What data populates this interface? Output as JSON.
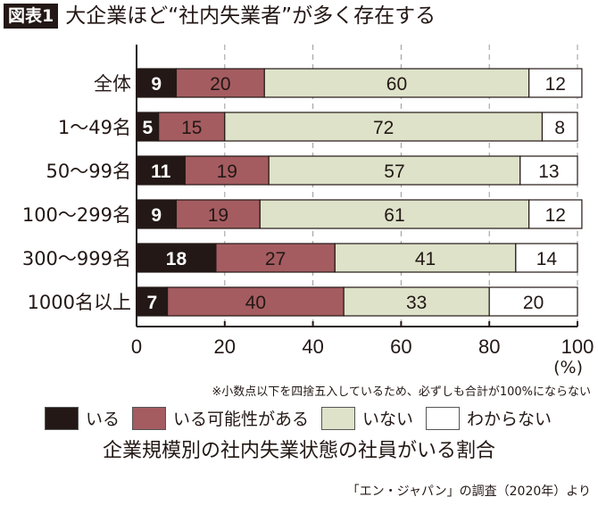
{
  "header": {
    "badge": "図表1",
    "title": "大企業ほど“社内失業者”が多く存在する"
  },
  "chart_data": {
    "type": "bar",
    "orientation": "horizontal",
    "stacked": true,
    "categories": [
      "全体",
      "1～49名",
      "50～99名",
      "100～299名",
      "300～999名",
      "1000名以上"
    ],
    "series": [
      {
        "name": "いる",
        "values": [
          9,
          5,
          11,
          9,
          18,
          7
        ],
        "color": "#231815"
      },
      {
        "name": "いる可能性がある",
        "values": [
          20,
          15,
          19,
          19,
          27,
          40
        ],
        "color": "#a45c60"
      },
      {
        "name": "いない",
        "values": [
          60,
          72,
          57,
          61,
          41,
          33
        ],
        "color": "#dde2c9"
      },
      {
        "name": "わからない",
        "values": [
          12,
          8,
          13,
          12,
          14,
          20
        ],
        "color": "#ffffff"
      }
    ],
    "xlim": [
      0,
      100
    ],
    "xticks": [
      "0",
      "20",
      "40",
      "60",
      "80",
      "100"
    ],
    "xunit": "(%)",
    "grid": true,
    "legend": "bottom",
    "note": "※小数点以下を四捨五入しているため、必ずしも合計が100%にならない",
    "subtitle": "企業規模別の社内失業状態の社員がいる割合",
    "source": "「エン・ジャパン」の調査（2020年）より"
  }
}
